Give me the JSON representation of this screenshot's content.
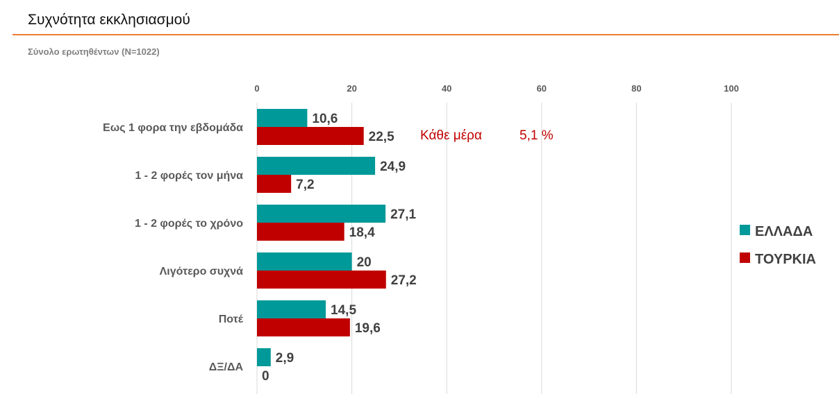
{
  "header": {
    "title": "Συχνότητα εκκλησιασμού",
    "subtitle": "Σύνολο ερωτηθέντων (N=1022)"
  },
  "chart_data": {
    "type": "bar",
    "orientation": "horizontal",
    "categories": [
      "Εως 1 φορα την εβδομάδα",
      "1 - 2 φορές τον μήνα",
      "1 - 2 φορές το χρόνο",
      "Λιγότερο συχνά",
      "Ποτέ",
      "ΔΞ/ΔΑ"
    ],
    "series": [
      {
        "name": "ΕΛΛΑΔΑ",
        "color": "#009999",
        "values": [
          10.6,
          24.9,
          27.1,
          20,
          14.5,
          2.9
        ],
        "labels": [
          "10,6",
          "24,9",
          "27,1",
          "20",
          "14,5",
          "2,9"
        ]
      },
      {
        "name": "ΤΟΥΡΚΙΑ",
        "color": "#c00000",
        "values": [
          22.5,
          7.2,
          18.4,
          27.2,
          19.6,
          0
        ],
        "labels": [
          "22,5",
          "7,2",
          "18,4",
          "27,2",
          "19,6",
          "0"
        ]
      }
    ],
    "xlim": [
      0,
      100
    ],
    "xticks": [
      "0",
      "20",
      "40",
      "60",
      "80",
      "100"
    ],
    "grid": true,
    "axis_position": "top",
    "legend_position": "right",
    "annotation": {
      "text": "Κάθε μέρα",
      "value": "5,1 %",
      "color": "#c00000"
    }
  }
}
